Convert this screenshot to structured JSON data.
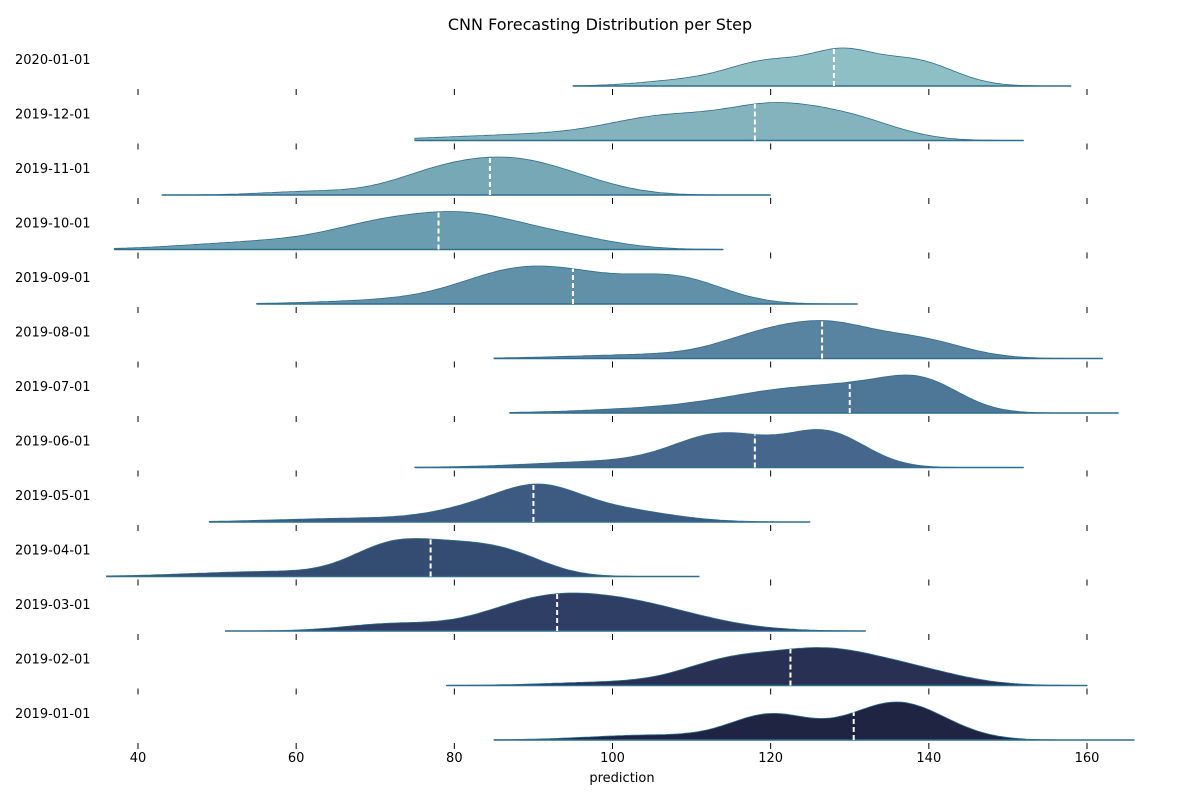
{
  "chart_data": {
    "type": "ridgeline",
    "title": "CNN Forecasting Distribution per Step",
    "xlabel": "prediction",
    "ylabel": "",
    "xlim": [
      35,
      166
    ],
    "x_ticks": [
      40,
      60,
      80,
      100,
      120,
      140,
      160
    ],
    "grid": false,
    "legend": "none",
    "median_line_color": "#ffffff",
    "series": [
      {
        "label": "2020-01-01",
        "color": "#8ebfc4",
        "range": [
          95,
          158
        ],
        "median": 128,
        "peaks": [
          [
            120,
            5,
            0.78
          ],
          [
            129,
            4,
            0.95
          ],
          [
            138,
            5,
            0.85
          ],
          [
            110,
            6,
            0.2
          ]
        ]
      },
      {
        "label": "2019-12-01",
        "color": "#84b3bd",
        "range": [
          75,
          152
        ],
        "median": 118,
        "peaks": [
          [
            107,
            7,
            0.72
          ],
          [
            120,
            6,
            1.0
          ],
          [
            130,
            6,
            0.7
          ],
          [
            92,
            12,
            0.22
          ]
        ]
      },
      {
        "label": "2019-11-01",
        "color": "#76a8b6",
        "range": [
          43,
          120
        ],
        "median": 84.5,
        "peaks": [
          [
            78,
            6,
            0.75
          ],
          [
            87,
            6,
            0.95
          ],
          [
            95,
            6,
            0.45
          ],
          [
            62,
            6,
            0.13
          ]
        ]
      },
      {
        "label": "2019-10-01",
        "color": "#6b9db0",
        "range": [
          37,
          114
        ],
        "median": 78,
        "peaks": [
          [
            72,
            7,
            0.9
          ],
          [
            82,
            6,
            0.85
          ],
          [
            92,
            7,
            0.55
          ],
          [
            57,
            10,
            0.3
          ]
        ]
      },
      {
        "label": "2019-09-01",
        "color": "#6191a9",
        "range": [
          55,
          131
        ],
        "median": 95,
        "peaks": [
          [
            88,
            7,
            1.0
          ],
          [
            108,
            6,
            0.85
          ],
          [
            97,
            6,
            0.5
          ],
          [
            75,
            10,
            0.15
          ]
        ]
      },
      {
        "label": "2019-08-01",
        "color": "#5883a1",
        "range": [
          85,
          162
        ],
        "median": 126.5,
        "peaks": [
          [
            120,
            6,
            0.9
          ],
          [
            128,
            5,
            0.85
          ],
          [
            138,
            6,
            0.75
          ],
          [
            105,
            10,
            0.15
          ]
        ]
      },
      {
        "label": "2019-07-01",
        "color": "#4e7697",
        "range": [
          87,
          164
        ],
        "median": 130,
        "peaks": [
          [
            123,
            8,
            0.62
          ],
          [
            139,
            5,
            0.9
          ],
          [
            131,
            5,
            0.3
          ],
          [
            108,
            10,
            0.15
          ]
        ]
      },
      {
        "label": "2019-06-01",
        "color": "#47668c",
        "range": [
          75,
          152
        ],
        "median": 118,
        "peaks": [
          [
            114,
            6,
            0.87
          ],
          [
            127,
            5,
            0.95
          ],
          [
            100,
            10,
            0.17
          ]
        ]
      },
      {
        "label": "2019-05-01",
        "color": "#3d5a80",
        "range": [
          49,
          125
        ],
        "median": 90,
        "peaks": [
          [
            91,
            5,
            1.0
          ],
          [
            84,
            6,
            0.55
          ],
          [
            100,
            7,
            0.5
          ],
          [
            68,
            10,
            0.15
          ]
        ]
      },
      {
        "label": "2019-04-01",
        "color": "#344c72",
        "range": [
          36,
          111
        ],
        "median": 77,
        "peaks": [
          [
            72,
            5,
            0.95
          ],
          [
            80,
            5,
            0.7
          ],
          [
            87,
            5,
            0.65
          ],
          [
            57,
            10,
            0.17
          ]
        ]
      },
      {
        "label": "2019-03-01",
        "color": "#2e3e64",
        "range": [
          51,
          132
        ],
        "median": 93,
        "peaks": [
          [
            90,
            7,
            0.88
          ],
          [
            100,
            8,
            0.85
          ],
          [
            72,
            6,
            0.27
          ],
          [
            108,
            8,
            0.3
          ]
        ]
      },
      {
        "label": "2019-02-01",
        "color": "#283153",
        "range": [
          79,
          160
        ],
        "median": 122.5,
        "peaks": [
          [
            115,
            6,
            0.83
          ],
          [
            126,
            6,
            0.95
          ],
          [
            136,
            7,
            0.65
          ],
          [
            100,
            8,
            0.12
          ]
        ]
      },
      {
        "label": "2019-01-01",
        "color": "#1e2442",
        "range": [
          85,
          166
        ],
        "median": 130.5,
        "peaks": [
          [
            120,
            5,
            0.65
          ],
          [
            136,
            6,
            1.0
          ],
          [
            105,
            8,
            0.13
          ]
        ]
      }
    ]
  }
}
